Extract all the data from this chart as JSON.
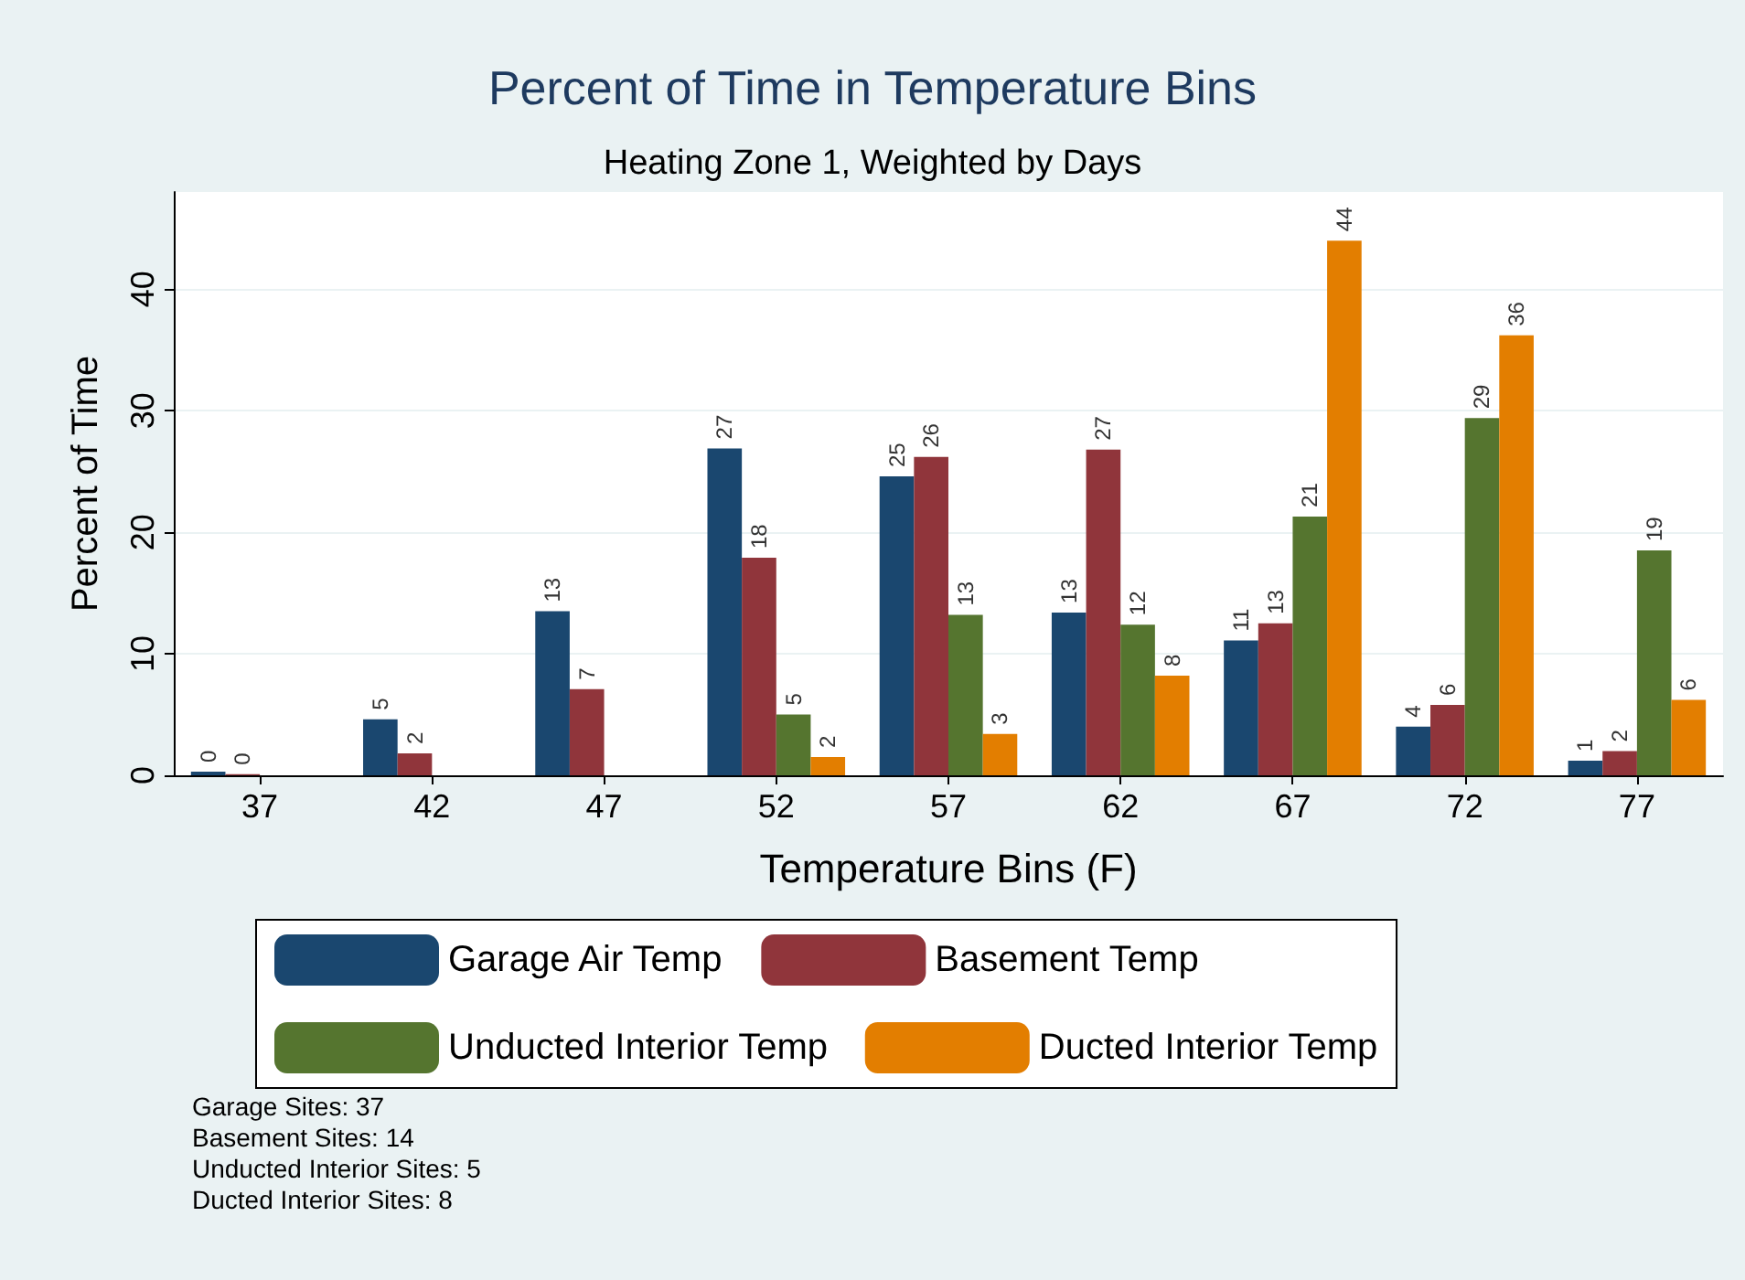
{
  "chart_data": {
    "type": "bar",
    "title": "Percent of Time in Temperature Bins",
    "subtitle": "Heating Zone 1, Weighted by Days",
    "xlabel": "Temperature Bins (F)",
    "ylabel": "Percent of Time",
    "categories": [
      "37",
      "42",
      "47",
      "52",
      "57",
      "62",
      "67",
      "72",
      "77"
    ],
    "series": [
      {
        "name": "Garage Air Temp",
        "color": "#1a476f",
        "values": [
          0.3,
          4.6,
          13.5,
          26.9,
          24.6,
          13.4,
          11.1,
          4,
          1.2
        ],
        "value_labels": [
          "0",
          "5",
          "13",
          "27",
          "25",
          "13",
          "11",
          "4",
          "1"
        ]
      },
      {
        "name": "Basement Temp",
        "color": "#90353b",
        "values": [
          0.1,
          1.8,
          7.1,
          17.9,
          26.2,
          26.8,
          12.5,
          5.8,
          2
        ],
        "value_labels": [
          "0",
          "2",
          "7",
          "18",
          "26",
          "27",
          "13",
          "6",
          "2"
        ]
      },
      {
        "name": "Unducted Interior Temp",
        "color": "#55752f",
        "values": [
          null,
          null,
          null,
          5,
          13.2,
          12.4,
          21.3,
          29.4,
          18.5
        ],
        "value_labels": [
          null,
          null,
          null,
          "5",
          "13",
          "12",
          "21",
          "29",
          "19"
        ]
      },
      {
        "name": "Ducted Interior Temp",
        "color": "#e37e00",
        "values": [
          null,
          null,
          null,
          1.5,
          3.4,
          8.2,
          44,
          36.2,
          6.2
        ],
        "value_labels": [
          null,
          null,
          null,
          "2",
          "3",
          "8",
          "44",
          "36",
          "6"
        ]
      }
    ],
    "ylim": [
      0,
      48
    ],
    "yticks": [
      0,
      10,
      20,
      30,
      40
    ],
    "grid": "y",
    "legend": "bottom",
    "annotations": [
      "Garage Sites: 37",
      "Basement Sites: 14",
      "Unducted Interior Sites: 5",
      "Ducted Interior Sites: 8"
    ]
  }
}
